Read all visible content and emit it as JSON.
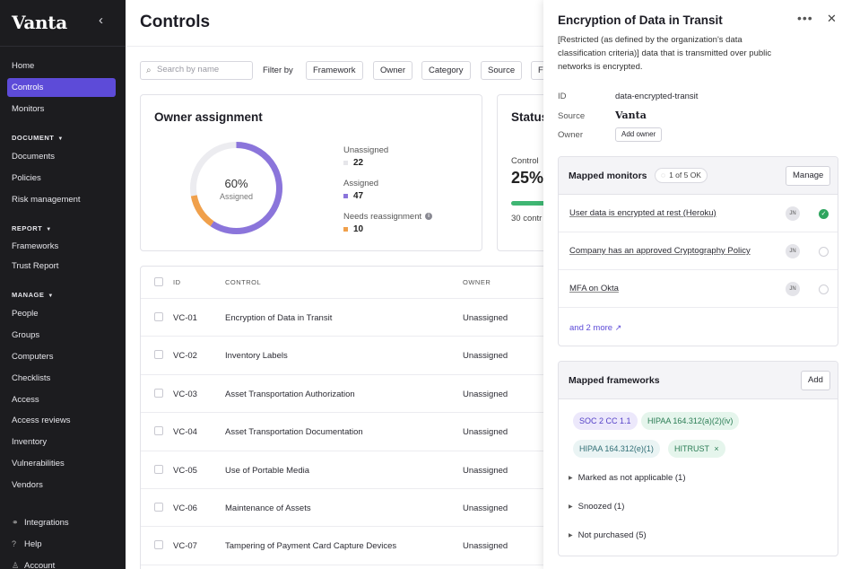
{
  "sidebar": {
    "logo": "Vanta",
    "collapse_icon": "chevron-left-icon",
    "items_top": [
      "Home",
      "Controls",
      "Monitors"
    ],
    "active": "Controls",
    "sections": {
      "document": "DOCUMENT",
      "report": "REPORT",
      "manage": "MANAGE"
    },
    "document_items": [
      "Documents",
      "Policies",
      "Risk management"
    ],
    "report_items": [
      "Frameworks",
      "Trust Report"
    ],
    "manage_items": [
      "People",
      "Groups",
      "Computers",
      "Checklists",
      "Access",
      "Access reviews",
      "Inventory",
      "Vulnerabilities",
      "Vendors"
    ],
    "bottom_items": [
      {
        "label": "Integrations",
        "icon": "integrations-icon"
      },
      {
        "label": "Help",
        "icon": "help-icon"
      },
      {
        "label": "Account",
        "icon": "account-icon"
      }
    ]
  },
  "main": {
    "title": "Controls",
    "search_placeholder": "Search by name",
    "filter_by": "Filter by",
    "filters": [
      "Framework",
      "Owner",
      "Category",
      "Source",
      "Fr"
    ],
    "owner_card": {
      "title": "Owner assignment",
      "percent": "60%",
      "percent_label": "Assigned",
      "legend": [
        {
          "label": "Unassigned",
          "value": "22",
          "color": "#e6e6ea"
        },
        {
          "label": "Assigned",
          "value": "47",
          "color": "#8b75db"
        },
        {
          "label": "Needs reassignment",
          "value": "10",
          "color": "#f0a04b"
        }
      ]
    },
    "status_card": {
      "title": "Status",
      "control_label": "Control",
      "percent": "25%",
      "progress": 0.25,
      "count_text": "30 contr"
    },
    "table": {
      "headers": {
        "id": "ID",
        "control": "CONTROL",
        "owner": "OWNER"
      },
      "rows": [
        {
          "id": "VC-01",
          "control": "Encryption of Data in Transit",
          "owner": "Unassigned"
        },
        {
          "id": "VC-02",
          "control": "Inventory Labels",
          "owner": "Unassigned"
        },
        {
          "id": "VC-03",
          "control": "Asset Transportation Authorization",
          "owner": "Unassigned"
        },
        {
          "id": "VC-04",
          "control": "Asset Transportation Documentation",
          "owner": "Unassigned"
        },
        {
          "id": "VC-05",
          "control": "Use of Portable Media",
          "owner": "Unassigned"
        },
        {
          "id": "VC-06",
          "control": "Maintenance of Assets",
          "owner": "Unassigned"
        },
        {
          "id": "VC-07",
          "control": "Tampering of Payment Card Capture Devices",
          "owner": "Unassigned"
        }
      ]
    }
  },
  "panel": {
    "title": "Encryption of Data in Transit",
    "description": "[Restricted (as defined by the organization's data classification criteria)] data that is transmitted over public networks is encrypted.",
    "id_label": "ID",
    "id_value": "data-encrypted-transit",
    "source_label": "Source",
    "source_value": "Vanta",
    "owner_label": "Owner",
    "add_owner": "Add owner",
    "monitors": {
      "title": "Mapped monitors",
      "status": "1 of 5 OK",
      "manage": "Manage",
      "items": [
        {
          "label": "User data is encrypted at rest (Heroku)",
          "avatar": "JN",
          "ok": true
        },
        {
          "label": "Company has an approved Cryptography Policy",
          "avatar": "JN",
          "ok": false
        },
        {
          "label": "MFA on Okta",
          "avatar": "JN",
          "ok": false
        }
      ],
      "more": "and 2 more"
    },
    "frameworks": {
      "title": "Mapped frameworks",
      "add": "Add",
      "tags": [
        "SOC 2 CC 1.1",
        "HIPAA 164.312(a)(2)(iv)",
        "HIPAA 164.312(e)(1)",
        "HITRUST"
      ],
      "collapsibles": [
        "Marked as not applicable (1)",
        "Snoozed (1)",
        "Not purchased (5)"
      ]
    }
  }
}
